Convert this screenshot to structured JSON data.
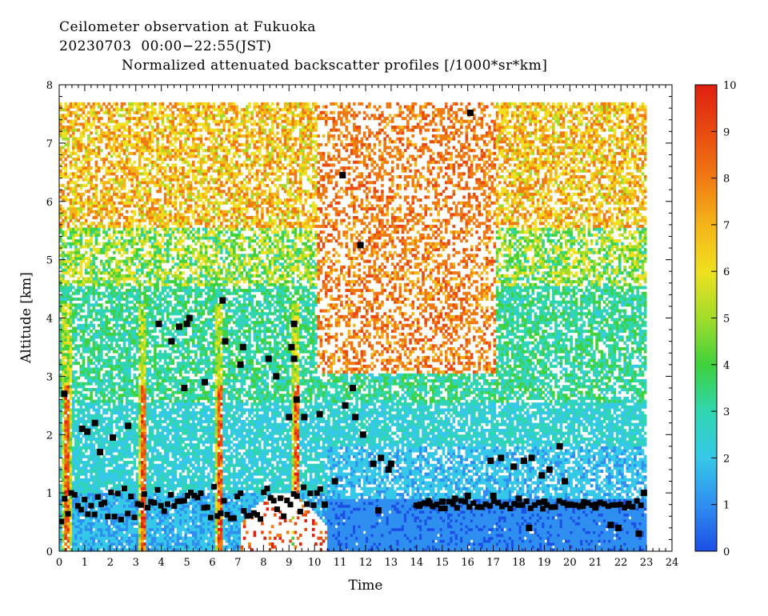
{
  "header": {
    "line1": "Ceilometer observation at Fukuoka",
    "line2": "20230703  00:00−22:55(JST)",
    "line3": "Normalized attenuated backscatter profiles [/1000*sr*km]"
  },
  "chart_data": {
    "type": "heatmap",
    "title": "Normalized attenuated backscatter profiles [/1000*sr*km]",
    "xlabel": "Time",
    "ylabel": "Altitude [km]",
    "xlim": [
      0,
      24
    ],
    "ylim": [
      0,
      8
    ],
    "data_extent": {
      "time": [
        0,
        22.92
      ],
      "altitude": [
        0,
        7.65
      ]
    },
    "x_ticks": [
      "0",
      "1",
      "2",
      "3",
      "4",
      "5",
      "6",
      "7",
      "8",
      "9",
      "10",
      "11",
      "12",
      "13",
      "14",
      "15",
      "16",
      "17",
      "18",
      "19",
      "20",
      "21",
      "22",
      "23",
      "24"
    ],
    "y_ticks": [
      "0",
      "1",
      "2",
      "3",
      "4",
      "5",
      "6",
      "7",
      "8"
    ],
    "colorbar": {
      "range": [
        0,
        10
      ],
      "ticks": [
        "0",
        "1",
        "2",
        "3",
        "4",
        "5",
        "6",
        "7",
        "8",
        "9",
        "10"
      ],
      "colors": [
        "#1c4fe6",
        "#2f8ff0",
        "#35c8e8",
        "#2fd6b0",
        "#3fd23c",
        "#a2dc2a",
        "#f0e020",
        "#f5b418",
        "#f07a12",
        "#e84a10",
        "#e02010"
      ]
    },
    "cloud_base_points": [
      [
        0.2,
        2.7
      ],
      [
        0.9,
        2.1
      ],
      [
        1.1,
        2.05
      ],
      [
        1.4,
        2.2
      ],
      [
        1.6,
        1.7
      ],
      [
        2.1,
        1.95
      ],
      [
        2.7,
        2.15
      ],
      [
        3.9,
        3.9
      ],
      [
        4.4,
        3.6
      ],
      [
        4.7,
        3.85
      ],
      [
        5.0,
        3.9
      ],
      [
        4.9,
        2.8
      ],
      [
        5.1,
        4.0
      ],
      [
        5.7,
        2.9
      ],
      [
        6.4,
        4.3
      ],
      [
        6.5,
        3.6
      ],
      [
        7.2,
        3.5
      ],
      [
        7.1,
        3.2
      ],
      [
        8.2,
        3.3
      ],
      [
        8.5,
        3.0
      ],
      [
        9.1,
        3.5
      ],
      [
        9.2,
        3.9
      ],
      [
        9.2,
        3.3
      ],
      [
        9.3,
        2.6
      ],
      [
        9.0,
        2.3
      ],
      [
        9.6,
        2.3
      ],
      [
        10.2,
        2.35
      ],
      [
        11.2,
        2.5
      ],
      [
        11.5,
        2.8
      ],
      [
        11.6,
        2.3
      ],
      [
        11.9,
        2.0
      ],
      [
        12.3,
        1.5
      ],
      [
        12.6,
        1.6
      ],
      [
        12.9,
        1.4
      ],
      [
        13.0,
        1.5
      ],
      [
        16.0,
        0.95
      ],
      [
        16.9,
        1.55
      ],
      [
        17.3,
        1.6
      ],
      [
        17.8,
        1.45
      ],
      [
        18.2,
        1.55
      ],
      [
        18.5,
        1.6
      ],
      [
        18.9,
        1.3
      ],
      [
        19.2,
        1.4
      ],
      [
        19.6,
        1.8
      ],
      [
        19.8,
        1.2
      ],
      [
        11.1,
        6.45
      ],
      [
        11.8,
        5.25
      ],
      [
        16.1,
        7.52
      ],
      [
        10.4,
        0.8
      ],
      [
        10.8,
        1.2
      ],
      [
        12.5,
        0.7
      ],
      [
        14.1,
        0.78
      ],
      [
        14.5,
        0.82
      ],
      [
        15.0,
        0.85
      ],
      [
        15.5,
        0.9
      ],
      [
        17.0,
        0.95
      ],
      [
        18.0,
        0.9
      ],
      [
        18.4,
        0.4
      ],
      [
        19.0,
        0.85
      ],
      [
        20.0,
        0.8
      ],
      [
        20.5,
        0.78
      ],
      [
        21.0,
        0.75
      ],
      [
        21.6,
        0.45
      ],
      [
        21.9,
        0.4
      ],
      [
        22.3,
        0.78
      ],
      [
        22.9,
        1.0
      ],
      [
        22.7,
        0.3
      ]
    ]
  }
}
